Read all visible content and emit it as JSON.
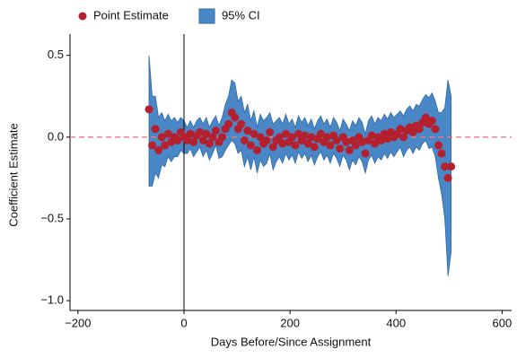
{
  "chart_data": {
    "type": "scatter",
    "x_label": "Days Before/Since Assignment",
    "y_label": "Coefficient Estimate",
    "x": [
      -66,
      -60,
      -54,
      -48,
      -42,
      -36,
      -30,
      -24,
      -18,
      -12,
      -6,
      0,
      6,
      12,
      18,
      24,
      30,
      36,
      42,
      48,
      54,
      60,
      66,
      72,
      78,
      84,
      90,
      96,
      102,
      108,
      114,
      120,
      126,
      132,
      138,
      144,
      150,
      156,
      162,
      168,
      174,
      180,
      186,
      192,
      198,
      204,
      210,
      216,
      222,
      228,
      234,
      240,
      246,
      252,
      258,
      264,
      270,
      276,
      282,
      288,
      294,
      300,
      306,
      312,
      318,
      324,
      330,
      336,
      342,
      348,
      354,
      360,
      366,
      372,
      378,
      384,
      390,
      396,
      402,
      408,
      414,
      420,
      426,
      432,
      438,
      444,
      450,
      456,
      462,
      468,
      474,
      480,
      486,
      492,
      498,
      504
    ],
    "series": [
      {
        "name": "Point Estimate",
        "color": "#b5202e",
        "values": [
          0.17,
          -0.05,
          0.05,
          -0.08,
          0.0,
          -0.05,
          0.02,
          -0.03,
          0.0,
          -0.02,
          0.03,
          0.0,
          -0.02,
          0.02,
          -0.03,
          0.01,
          0.03,
          -0.02,
          0.02,
          -0.04,
          0.0,
          0.04,
          -0.03,
          0.0,
          0.05,
          0.08,
          0.15,
          0.12,
          0.05,
          0.08,
          -0.02,
          0.04,
          -0.05,
          0.02,
          -0.08,
          0.0,
          -0.04,
          -0.02,
          0.03,
          -0.06,
          -0.02,
          0.0,
          -0.04,
          0.02,
          -0.03,
          0.0,
          -0.05,
          0.02,
          -0.02,
          0.01,
          -0.04,
          0.0,
          -0.06,
          -0.01,
          0.02,
          -0.03,
          0.0,
          -0.05,
          0.01,
          -0.02,
          -0.07,
          0.0,
          -0.03,
          -0.08,
          -0.02,
          -0.05,
          0.0,
          -0.03,
          -0.1,
          -0.02,
          0.01,
          -0.04,
          0.0,
          -0.02,
          0.02,
          -0.01,
          0.03,
          0.0,
          0.02,
          0.05,
          0.0,
          0.04,
          0.06,
          0.03,
          0.07,
          0.05,
          0.09,
          0.12,
          0.08,
          0.1,
          0.05,
          -0.05,
          -0.1,
          -0.18,
          -0.25,
          -0.18
        ]
      },
      {
        "name": "95% CI",
        "color": "#4a87c6",
        "lower": [
          -0.3,
          -0.3,
          -0.22,
          -0.25,
          -0.17,
          -0.18,
          -0.12,
          -0.15,
          -0.12,
          -0.12,
          -0.08,
          -0.1,
          -0.1,
          -0.07,
          -0.12,
          -0.09,
          -0.06,
          -0.12,
          -0.08,
          -0.14,
          -0.1,
          -0.05,
          -0.13,
          -0.12,
          -0.08,
          -0.05,
          -0.02,
          -0.04,
          -0.1,
          -0.08,
          -0.18,
          -0.12,
          -0.2,
          -0.12,
          -0.22,
          -0.14,
          -0.18,
          -0.16,
          -0.1,
          -0.2,
          -0.15,
          -0.12,
          -0.16,
          -0.1,
          -0.14,
          -0.11,
          -0.16,
          -0.09,
          -0.13,
          -0.1,
          -0.15,
          -0.11,
          -0.17,
          -0.12,
          -0.09,
          -0.14,
          -0.11,
          -0.16,
          -0.1,
          -0.13,
          -0.18,
          -0.11,
          -0.14,
          -0.2,
          -0.14,
          -0.17,
          -0.12,
          -0.15,
          -0.22,
          -0.14,
          -0.11,
          -0.16,
          -0.12,
          -0.14,
          -0.1,
          -0.13,
          -0.09,
          -0.12,
          -0.09,
          -0.06,
          -0.12,
          -0.08,
          -0.06,
          -0.1,
          -0.06,
          -0.08,
          -0.04,
          -0.02,
          -0.07,
          -0.06,
          -0.12,
          -0.25,
          -0.35,
          -0.5,
          -0.85,
          -0.7
        ],
        "upper": [
          0.5,
          0.25,
          0.25,
          0.12,
          0.15,
          0.1,
          0.14,
          0.1,
          0.12,
          0.09,
          0.12,
          0.1,
          0.06,
          0.1,
          0.06,
          0.1,
          0.12,
          0.08,
          0.12,
          0.06,
          0.1,
          0.13,
          0.07,
          0.12,
          0.2,
          0.25,
          0.35,
          0.33,
          0.22,
          0.25,
          0.15,
          0.2,
          0.1,
          0.16,
          0.06,
          0.14,
          0.1,
          0.12,
          0.15,
          0.08,
          0.1,
          0.12,
          0.08,
          0.14,
          0.08,
          0.11,
          0.06,
          0.13,
          0.09,
          0.12,
          0.07,
          0.11,
          0.05,
          0.1,
          0.13,
          0.08,
          0.11,
          0.06,
          0.12,
          0.09,
          0.04,
          0.11,
          0.08,
          0.04,
          0.1,
          0.07,
          0.12,
          0.09,
          0.02,
          0.1,
          0.13,
          0.08,
          0.12,
          0.1,
          0.14,
          0.11,
          0.15,
          0.12,
          0.14,
          0.16,
          0.13,
          0.17,
          0.19,
          0.16,
          0.2,
          0.19,
          0.23,
          0.26,
          0.24,
          0.27,
          0.22,
          0.15,
          0.15,
          0.18,
          0.35,
          0.25
        ]
      }
    ],
    "xlim": [
      -215,
      618
    ],
    "ylim": [
      -1.06,
      0.63
    ],
    "xticks": [
      {
        "value": -200,
        "label": "−200"
      },
      0,
      200,
      400,
      600
    ],
    "yticks": [
      0.5,
      {
        "value": 0,
        "label": "0.0"
      },
      {
        "value": -0.5,
        "label": "−0.5"
      },
      {
        "value": -1,
        "label": "−1.0"
      }
    ],
    "vline": {
      "value": 0,
      "color": "#000000"
    },
    "hline": {
      "value": 0,
      "color": "#f07878",
      "dashed": true
    },
    "legend": "top-left"
  }
}
